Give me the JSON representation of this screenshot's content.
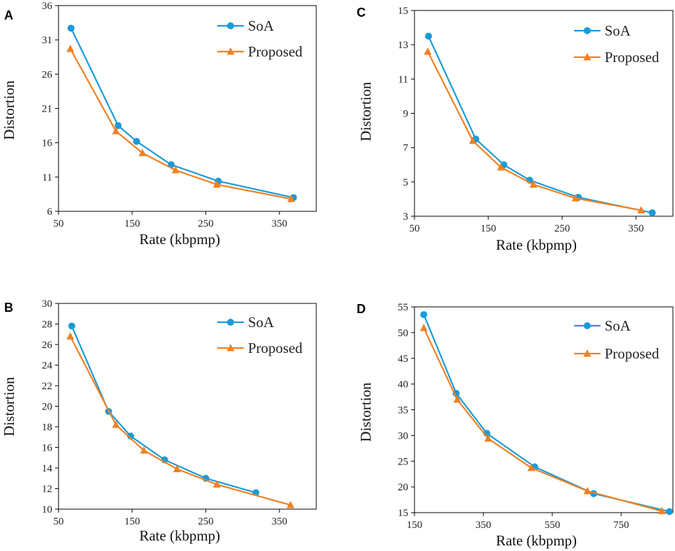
{
  "colors": {
    "soa": "#1a9bd7",
    "proposed": "#f28022",
    "axis": "#000000"
  },
  "chart_data": [
    {
      "panel": "A",
      "type": "line",
      "xlabel": "Rate (kbpmp)",
      "ylabel": "Distortion",
      "xlim": [
        50,
        400
      ],
      "ylim": [
        6,
        36
      ],
      "xticks": [
        50,
        150,
        250,
        350
      ],
      "yticks": [
        6,
        11,
        16,
        21,
        26,
        31,
        36
      ],
      "legend": "top-right",
      "series": [
        {
          "name": "SoA",
          "marker": "circle",
          "x": [
            67,
            131,
            156,
            203,
            267,
            369
          ],
          "y": [
            32.7,
            18.5,
            16.2,
            12.8,
            10.4,
            8.0
          ]
        },
        {
          "name": "Proposed",
          "marker": "triangle",
          "x": [
            66,
            128,
            164,
            209,
            265,
            366
          ],
          "y": [
            29.7,
            17.7,
            14.5,
            12.0,
            9.9,
            7.8
          ]
        }
      ]
    },
    {
      "panel": "C",
      "type": "line",
      "xlabel": "Rate (kbpmp)",
      "ylabel": "Distortion",
      "xlim": [
        50,
        400
      ],
      "ylim": [
        3,
        15
      ],
      "xticks": [
        50,
        150,
        250,
        350
      ],
      "yticks": [
        3,
        5,
        7,
        9,
        11,
        13,
        15
      ],
      "legend": "top-right",
      "series": [
        {
          "name": "SoA",
          "marker": "circle",
          "x": [
            69,
            133,
            171,
            206,
            272,
            372
          ],
          "y": [
            13.5,
            7.5,
            6.0,
            5.1,
            4.1,
            3.2
          ]
        },
        {
          "name": "Proposed",
          "marker": "triangle",
          "x": [
            68,
            129,
            167,
            211,
            268,
            357
          ],
          "y": [
            12.6,
            7.4,
            5.85,
            4.85,
            4.05,
            3.35
          ]
        }
      ]
    },
    {
      "panel": "B",
      "type": "line",
      "xlabel": "Rate (kbpmp)",
      "ylabel": "Distortion",
      "xlim": [
        50,
        400
      ],
      "ylim": [
        10,
        30
      ],
      "xticks": [
        50,
        150,
        250,
        350
      ],
      "yticks": [
        10,
        12,
        14,
        16,
        18,
        20,
        22,
        24,
        26,
        28,
        30
      ],
      "legend": "top-right",
      "series": [
        {
          "name": "SoA",
          "marker": "circle",
          "x": [
            68,
            118,
            148,
            194,
            250,
            318
          ],
          "y": [
            27.8,
            19.5,
            17.1,
            14.8,
            13.0,
            11.6
          ]
        },
        {
          "name": "Proposed",
          "marker": "triangle",
          "x": [
            66,
            128,
            166,
            211,
            265,
            365
          ],
          "y": [
            26.8,
            18.2,
            15.7,
            13.9,
            12.4,
            10.4
          ]
        }
      ]
    },
    {
      "panel": "D",
      "type": "line",
      "xlabel": "Rate (kbpmp)",
      "ylabel": "Distortion",
      "xlim": [
        150,
        900
      ],
      "ylim": [
        15,
        55
      ],
      "xticks": [
        150,
        350,
        550,
        750
      ],
      "yticks": [
        15,
        20,
        25,
        30,
        35,
        40,
        45,
        50,
        55
      ],
      "legend": "top-right",
      "series": [
        {
          "name": "SoA",
          "marker": "circle",
          "x": [
            177,
            271,
            360,
            499,
            670,
            890
          ],
          "y": [
            53.5,
            38.2,
            30.4,
            23.9,
            18.7,
            15.2
          ]
        },
        {
          "name": "Proposed",
          "marker": "triangle",
          "x": [
            177,
            274,
            364,
            489,
            652,
            868
          ],
          "y": [
            50.9,
            37.0,
            29.4,
            23.7,
            19.2,
            15.3
          ]
        }
      ]
    }
  ]
}
